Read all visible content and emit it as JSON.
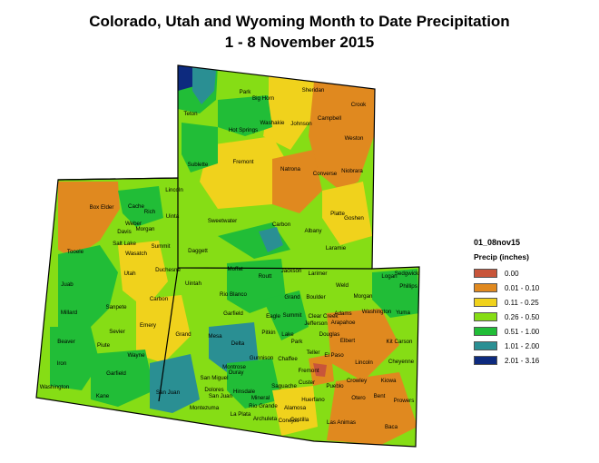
{
  "title": "Colorado, Utah and Wyoming Month to Date Precipitation",
  "subtitle": "1 - 8 November 2015",
  "legend": {
    "name": "01_08nov15",
    "field": "Precip (inches)",
    "classes": [
      {
        "label": "0.00",
        "color": "#c8553a"
      },
      {
        "label": "0.01 - 0.10",
        "color": "#e0891f"
      },
      {
        "label": "0.11 - 0.25",
        "color": "#f0d21c"
      },
      {
        "label": "0.26 - 0.50",
        "color": "#86dd15"
      },
      {
        "label": "0.51 - 1.00",
        "color": "#21bd37"
      },
      {
        "label": "1.01 - 2.00",
        "color": "#2a8f93"
      },
      {
        "label": "2.01 - 3.16",
        "color": "#0d2a7e"
      }
    ]
  },
  "counties": {
    "wyoming": [
      "Park",
      "Big Horn",
      "Sheridan",
      "Crook",
      "Teton",
      "Washakie",
      "Johnson",
      "Campbell",
      "Hot Springs",
      "Weston",
      "Fremont",
      "Natrona",
      "Converse",
      "Niobrara",
      "Sublette",
      "Lincoln",
      "Sweetwater",
      "Carbon",
      "Albany",
      "Platte",
      "Goshen",
      "Uinta",
      "Laramie"
    ],
    "utah": [
      "Box Elder",
      "Cache",
      "Rich",
      "Weber",
      "Morgan",
      "Davis",
      "Salt Lake",
      "Summit",
      "Daggett",
      "Tooele",
      "Wasatch",
      "Duchesne",
      "Uintah",
      "Utah",
      "Juab",
      "Carbon",
      "Sanpete",
      "Emery",
      "Millard",
      "Sevier",
      "Grand",
      "Beaver",
      "Piute",
      "Wayne",
      "Iron",
      "Garfield",
      "Washington",
      "Kane",
      "San Juan"
    ],
    "colorado": [
      "Moffat",
      "Jackson",
      "Larimer",
      "Weld",
      "Logan",
      "Sedgwick",
      "Phillips",
      "Routt",
      "Rio Blanco",
      "Grand",
      "Boulder",
      "Morgan",
      "Garfield",
      "Eagle",
      "Summit",
      "Clear Creek",
      "Adams",
      "Washington",
      "Yuma",
      "Jefferson",
      "Arapahoe",
      "Mesa",
      "Delta",
      "Pitkin",
      "Lake",
      "Park",
      "Douglas",
      "Elbert",
      "Kit Carson",
      "Teller",
      "El Paso",
      "Lincoln",
      "Cheyenne",
      "Montrose",
      "Gunnison",
      "Chaffee",
      "Fremont",
      "Kiowa",
      "San Miguel",
      "Ouray",
      "Hinsdale",
      "Saguache",
      "Custer",
      "Pueblo",
      "Crowley",
      "Dolores",
      "San Juan",
      "Mineral",
      "Otero",
      "Bent",
      "Prowers",
      "Montezuma",
      "La Plata",
      "Rio Grande",
      "Alamosa",
      "Huerfano",
      "Archuleta",
      "Conejos",
      "Costilla",
      "Las Animas",
      "Baca"
    ]
  }
}
